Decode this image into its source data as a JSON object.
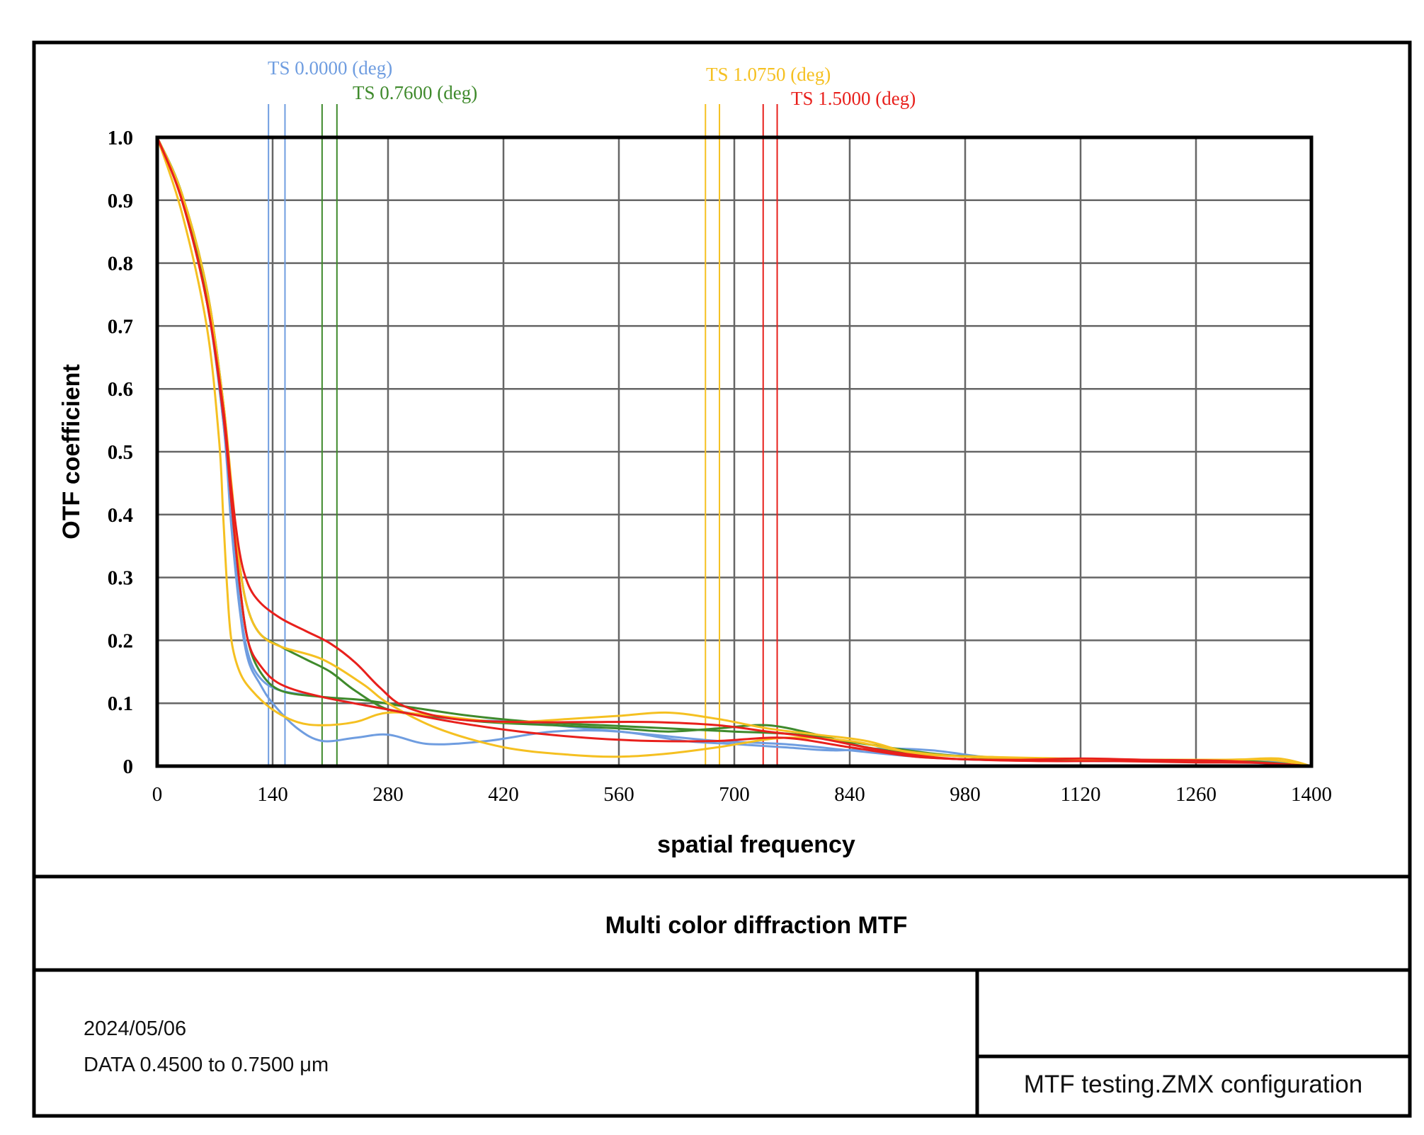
{
  "chart_data": {
    "type": "line",
    "title": "Multi color diffraction MTF",
    "xlabel": "spatial frequency",
    "ylabel": "OTF coefficient",
    "xlim": [
      0,
      1400
    ],
    "ylim": [
      0,
      1.0
    ],
    "x_ticks": [
      "0",
      "140",
      "280",
      "420",
      "560",
      "700",
      "840",
      "980",
      "1120",
      "1260",
      "1400"
    ],
    "y_ticks": [
      "0",
      "0.1",
      "0.2",
      "0.3",
      "0.4",
      "0.5",
      "0.6",
      "0.7",
      "0.8",
      "0.9",
      "1.0"
    ],
    "grid": true,
    "legend": [
      {
        "label": "TS  0.0000 (deg)",
        "color": "#6f9de0",
        "markers": [
          135,
          155
        ]
      },
      {
        "label": "TS  0.7600  (deg)",
        "color": "#3f8a2c",
        "markers": [
          200,
          218
        ]
      },
      {
        "label": "TS  1.0750  (deg)",
        "color": "#f5c021",
        "markers": [
          665,
          682
        ]
      },
      {
        "label": "TS  1.5000  (deg)",
        "color": "#e8201c",
        "markers": [
          735,
          752
        ]
      }
    ],
    "series": [
      {
        "name": "TS 0.0000 (deg) T",
        "color": "#6f9de0",
        "x": [
          0,
          30,
          60,
          80,
          90,
          100,
          110,
          125,
          140,
          170,
          200,
          240,
          280,
          330,
          400,
          480,
          560,
          640,
          700,
          760,
          820,
          880,
          940,
          1000,
          1050,
          1100,
          1150,
          1200,
          1260,
          1320,
          1370,
          1400
        ],
        "y": [
          1.0,
          0.9,
          0.74,
          0.55,
          0.38,
          0.25,
          0.17,
          0.13,
          0.1,
          0.06,
          0.04,
          0.045,
          0.05,
          0.035,
          0.04,
          0.055,
          0.055,
          0.04,
          0.035,
          0.03,
          0.025,
          0.028,
          0.025,
          0.015,
          0.01,
          0.01,
          0.008,
          0.008,
          0.008,
          0.008,
          0.005,
          0.0
        ]
      },
      {
        "name": "TS 0.0000 (deg) S",
        "color": "#6f9de0",
        "x": [
          0,
          30,
          60,
          80,
          90,
          100,
          110,
          125,
          150,
          200,
          280,
          360,
          440,
          520,
          600,
          680,
          760,
          840,
          920,
          1000,
          1080,
          1160,
          1240,
          1320,
          1400
        ],
        "y": [
          1.0,
          0.9,
          0.74,
          0.55,
          0.4,
          0.26,
          0.18,
          0.14,
          0.12,
          0.11,
          0.09,
          0.075,
          0.07,
          0.06,
          0.05,
          0.04,
          0.035,
          0.025,
          0.015,
          0.01,
          0.01,
          0.008,
          0.008,
          0.006,
          0.0
        ]
      },
      {
        "name": "TS 0.7600 (deg) T",
        "color": "#3f8a2c",
        "x": [
          0,
          30,
          60,
          80,
          90,
          100,
          110,
          125,
          150,
          180,
          210,
          240,
          280,
          330,
          400,
          480,
          560,
          620,
          680,
          740,
          800,
          860,
          920,
          1000,
          1100,
          1200,
          1300,
          1400
        ],
        "y": [
          1.0,
          0.91,
          0.76,
          0.58,
          0.44,
          0.32,
          0.25,
          0.21,
          0.19,
          0.17,
          0.15,
          0.12,
          0.09,
          0.08,
          0.07,
          0.065,
          0.06,
          0.055,
          0.06,
          0.065,
          0.05,
          0.03,
          0.02,
          0.015,
          0.01,
          0.01,
          0.008,
          0.0
        ]
      },
      {
        "name": "TS 0.7600 (deg) S",
        "color": "#3f8a2c",
        "x": [
          0,
          30,
          60,
          80,
          90,
          100,
          110,
          125,
          150,
          200,
          250,
          300,
          380,
          460,
          540,
          620,
          700,
          780,
          860,
          940,
          1020,
          1120,
          1220,
          1320,
          1400
        ],
        "y": [
          1.0,
          0.91,
          0.75,
          0.57,
          0.42,
          0.29,
          0.2,
          0.15,
          0.12,
          0.11,
          0.105,
          0.095,
          0.08,
          0.07,
          0.065,
          0.06,
          0.055,
          0.05,
          0.035,
          0.02,
          0.012,
          0.01,
          0.01,
          0.008,
          0.0
        ]
      },
      {
        "name": "TS 1.0750 (deg) T",
        "color": "#f5c021",
        "x": [
          0,
          30,
          60,
          75,
          80,
          85,
          90,
          100,
          115,
          140,
          170,
          200,
          240,
          280,
          340,
          420,
          500,
          560,
          620,
          680,
          740,
          800,
          860,
          920,
          1000,
          1100,
          1200,
          1300,
          1360,
          1400
        ],
        "y": [
          1.0,
          0.88,
          0.7,
          0.52,
          0.4,
          0.28,
          0.2,
          0.15,
          0.12,
          0.09,
          0.07,
          0.065,
          0.07,
          0.085,
          0.08,
          0.07,
          0.075,
          0.08,
          0.085,
          0.075,
          0.06,
          0.05,
          0.04,
          0.02,
          0.015,
          0.012,
          0.01,
          0.01,
          0.012,
          0.0
        ]
      },
      {
        "name": "TS 1.0750 (deg) S",
        "color": "#f5c021",
        "x": [
          0,
          30,
          60,
          80,
          90,
          100,
          110,
          125,
          150,
          200,
          250,
          280,
          340,
          420,
          500,
          560,
          620,
          680,
          760,
          840,
          900,
          980,
          1080,
          1180,
          1280,
          1350,
          1400
        ],
        "y": [
          1.0,
          0.91,
          0.76,
          0.58,
          0.45,
          0.32,
          0.25,
          0.21,
          0.19,
          0.17,
          0.13,
          0.1,
          0.06,
          0.03,
          0.018,
          0.015,
          0.02,
          0.03,
          0.045,
          0.04,
          0.025,
          0.015,
          0.012,
          0.01,
          0.01,
          0.01,
          0.0
        ]
      },
      {
        "name": "TS 1.5000 (deg) T",
        "color": "#e8201c",
        "x": [
          0,
          30,
          60,
          80,
          90,
          100,
          110,
          125,
          150,
          180,
          210,
          240,
          270,
          300,
          360,
          440,
          520,
          600,
          680,
          740,
          800,
          880,
          960,
          1040,
          1120,
          1200,
          1300,
          1400
        ],
        "y": [
          1.0,
          0.9,
          0.74,
          0.57,
          0.44,
          0.34,
          0.29,
          0.26,
          0.235,
          0.215,
          0.195,
          0.165,
          0.125,
          0.095,
          0.075,
          0.07,
          0.07,
          0.07,
          0.065,
          0.055,
          0.045,
          0.025,
          0.012,
          0.01,
          0.012,
          0.01,
          0.008,
          0.0
        ]
      },
      {
        "name": "TS 1.5000 (deg) S",
        "color": "#e8201c",
        "x": [
          0,
          30,
          60,
          80,
          90,
          100,
          110,
          125,
          150,
          200,
          280,
          360,
          440,
          520,
          600,
          680,
          760,
          840,
          920,
          1000,
          1080,
          1160,
          1260,
          1340,
          1400
        ],
        "y": [
          1.0,
          0.9,
          0.74,
          0.56,
          0.42,
          0.29,
          0.2,
          0.16,
          0.13,
          0.11,
          0.09,
          0.07,
          0.055,
          0.045,
          0.04,
          0.04,
          0.045,
          0.03,
          0.015,
          0.01,
          0.008,
          0.008,
          0.006,
          0.005,
          0.0
        ]
      }
    ]
  },
  "footer": {
    "title": "Multi color diffraction MTF",
    "date": "2024/05/06",
    "data_range": "DATA  0.4500 to 0.7500 μm",
    "config": "MTF testing.ZMX configuration",
    "config_top": ""
  }
}
